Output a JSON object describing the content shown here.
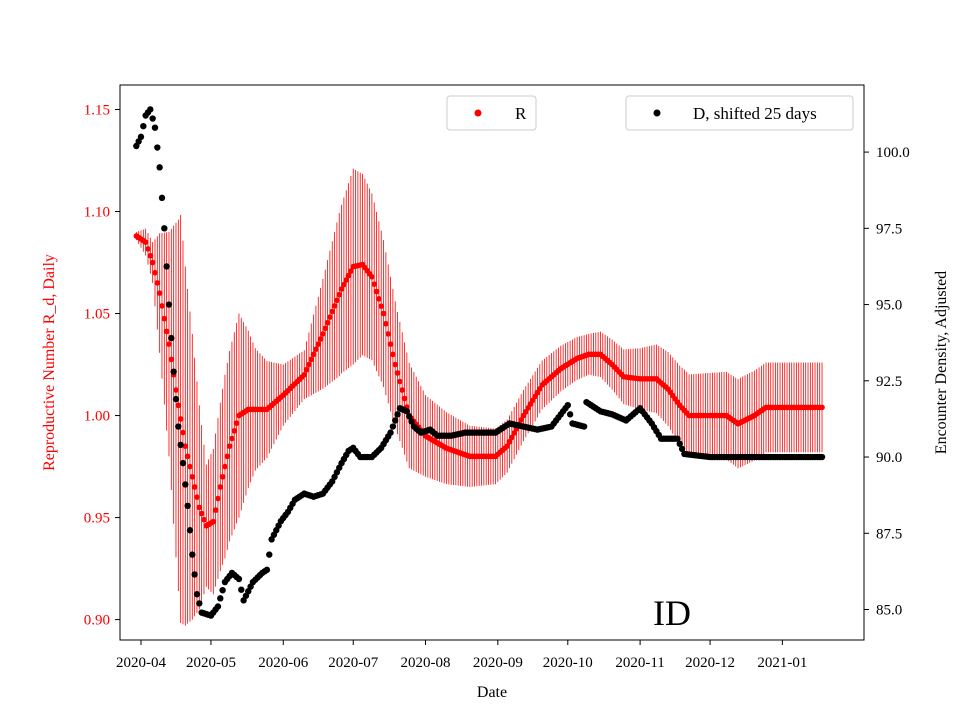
{
  "chart_data": {
    "type": "scatter",
    "xlabel": "Date",
    "ylabel_left": "Reproductive Number R_d, Daily",
    "ylabel_right": "Encounter Density, Adjusted",
    "left_axis_color": "#ff0000",
    "right_axis_color": "#000000",
    "ylim_left": [
      0.89,
      1.162
    ],
    "ylim_right": [
      84.0,
      102.2
    ],
    "x_domain": [
      "2020-03-23",
      "2021-02-05"
    ],
    "x_ticks": [
      "2020-04-01",
      "2020-05-01",
      "2020-06-01",
      "2020-07-01",
      "2020-08-01",
      "2020-09-01",
      "2020-10-01",
      "2020-11-01",
      "2020-12-01",
      "2021-01-01"
    ],
    "x_tick_labels": [
      "2020-04",
      "2020-05",
      "2020-06",
      "2020-07",
      "2020-08",
      "2020-09",
      "2020-10",
      "2020-11",
      "2020-12",
      "2021-01"
    ],
    "y_left_ticks": [
      0.9,
      0.95,
      1.0,
      1.05,
      1.1,
      1.15
    ],
    "y_left_tick_labels": [
      "0.90",
      "0.95",
      "1.00",
      "1.05",
      "1.10",
      "1.15"
    ],
    "y_right_ticks": [
      85.0,
      87.5,
      90.0,
      92.5,
      95.0,
      97.5,
      100.0
    ],
    "y_right_tick_labels": [
      "85.0",
      "87.5",
      "90.0",
      "92.5",
      "95.0",
      "97.5",
      "100.0"
    ],
    "annotation": "ID",
    "series": [
      {
        "name": "R",
        "axis": "left",
        "color": "#ff0000",
        "keypoints": [
          [
            "2020-03-30",
            1.088
          ],
          [
            "2020-04-03",
            1.085
          ],
          [
            "2020-04-06",
            1.075
          ],
          [
            "2020-04-09",
            1.06
          ],
          [
            "2020-04-13",
            1.035
          ],
          [
            "2020-04-17",
            1.005
          ],
          [
            "2020-04-20",
            0.985
          ],
          [
            "2020-04-23",
            0.97
          ],
          [
            "2020-04-26",
            0.955
          ],
          [
            "2020-04-29",
            0.946
          ],
          [
            "2020-05-02",
            0.948
          ],
          [
            "2020-05-05",
            0.965
          ],
          [
            "2020-05-09",
            0.985
          ],
          [
            "2020-05-13",
            1.0
          ],
          [
            "2020-05-17",
            1.003
          ],
          [
            "2020-05-25",
            1.003
          ],
          [
            "2020-06-01",
            1.01
          ],
          [
            "2020-06-10",
            1.02
          ],
          [
            "2020-06-18",
            1.04
          ],
          [
            "2020-06-26",
            1.062
          ],
          [
            "2020-07-01",
            1.073
          ],
          [
            "2020-07-05",
            1.074
          ],
          [
            "2020-07-09",
            1.068
          ],
          [
            "2020-07-14",
            1.05
          ],
          [
            "2020-07-19",
            1.025
          ],
          [
            "2020-07-25",
            1.0
          ],
          [
            "2020-08-01",
            0.99
          ],
          [
            "2020-08-10",
            0.984
          ],
          [
            "2020-08-20",
            0.98
          ],
          [
            "2020-08-31",
            0.98
          ],
          [
            "2020-09-05",
            0.985
          ],
          [
            "2020-09-12",
            1.0
          ],
          [
            "2020-09-20",
            1.015
          ],
          [
            "2020-09-28",
            1.023
          ],
          [
            "2020-10-05",
            1.028
          ],
          [
            "2020-10-10",
            1.03
          ],
          [
            "2020-10-15",
            1.03
          ],
          [
            "2020-10-20",
            1.025
          ],
          [
            "2020-10-25",
            1.019
          ],
          [
            "2020-11-01",
            1.018
          ],
          [
            "2020-11-08",
            1.018
          ],
          [
            "2020-11-13",
            1.013
          ],
          [
            "2020-11-18",
            1.005
          ],
          [
            "2020-11-22",
            1.0
          ],
          [
            "2020-11-30",
            1.0
          ],
          [
            "2020-12-08",
            1.0
          ],
          [
            "2020-12-13",
            0.996
          ],
          [
            "2020-12-20",
            1.0
          ],
          [
            "2020-12-25",
            1.004
          ],
          [
            "2021-01-05",
            1.004
          ],
          [
            "2021-01-18",
            1.004
          ]
        ],
        "error_keypoints": [
          [
            "2020-03-30",
            0.002
          ],
          [
            "2020-04-06",
            0.01
          ],
          [
            "2020-04-13",
            0.055
          ],
          [
            "2020-04-18",
            0.1
          ],
          [
            "2020-04-23",
            0.07
          ],
          [
            "2020-04-29",
            0.03
          ],
          [
            "2020-05-07",
            0.045
          ],
          [
            "2020-05-13",
            0.05
          ],
          [
            "2020-05-20",
            0.03
          ],
          [
            "2020-06-01",
            0.015
          ],
          [
            "2020-06-10",
            0.012
          ],
          [
            "2020-06-25",
            0.04
          ],
          [
            "2020-07-01",
            0.048
          ],
          [
            "2020-07-10",
            0.04
          ],
          [
            "2020-07-20",
            0.03
          ],
          [
            "2020-08-01",
            0.02
          ],
          [
            "2020-08-20",
            0.015
          ],
          [
            "2020-09-05",
            0.013
          ],
          [
            "2020-09-20",
            0.012
          ],
          [
            "2020-10-10",
            0.01
          ],
          [
            "2020-11-01",
            0.015
          ],
          [
            "2020-11-20",
            0.02
          ],
          [
            "2020-12-15",
            0.022
          ],
          [
            "2021-01-18",
            0.022
          ]
        ]
      },
      {
        "name": "D, shifted 25 days",
        "axis": "right",
        "color": "#000000",
        "keypoints": [
          [
            "2020-03-30",
            100.2
          ],
          [
            "2020-04-01",
            100.5
          ],
          [
            "2020-04-03",
            101.2
          ],
          [
            "2020-04-05",
            101.4
          ],
          [
            "2020-04-07",
            100.8
          ],
          [
            "2020-04-09",
            99.5
          ],
          [
            "2020-04-11",
            97.5
          ],
          [
            "2020-04-13",
            95.0
          ],
          [
            "2020-04-15",
            92.8
          ],
          [
            "2020-04-17",
            91.0
          ],
          [
            "2020-04-19",
            89.8
          ],
          [
            "2020-04-21",
            88.4
          ],
          [
            "2020-04-23",
            86.8
          ],
          [
            "2020-04-25",
            85.5
          ],
          [
            "2020-04-27",
            84.9
          ],
          [
            "2020-05-01",
            84.8
          ],
          [
            "2020-05-04",
            85.1
          ],
          [
            "2020-05-07",
            85.9
          ],
          [
            "2020-05-10",
            86.2
          ],
          [
            "2020-05-13",
            86.0
          ],
          [
            "2020-05-15",
            85.3
          ],
          [
            "2020-05-19",
            85.9
          ],
          [
            "2020-05-23",
            86.2
          ],
          [
            "2020-05-25",
            86.3
          ],
          [
            "2020-05-27",
            87.3
          ],
          [
            "2020-05-31",
            87.9
          ],
          [
            "2020-06-03",
            88.2
          ],
          [
            "2020-06-06",
            88.6
          ],
          [
            "2020-06-10",
            88.8
          ],
          [
            "2020-06-14",
            88.7
          ],
          [
            "2020-06-18",
            88.8
          ],
          [
            "2020-06-22",
            89.2
          ],
          [
            "2020-06-26",
            89.8
          ],
          [
            "2020-06-29",
            90.2
          ],
          [
            "2020-07-01",
            90.3
          ],
          [
            "2020-07-04",
            90.0
          ],
          [
            "2020-07-09",
            90.0
          ],
          [
            "2020-07-13",
            90.3
          ],
          [
            "2020-07-17",
            90.8
          ],
          [
            "2020-07-21",
            91.6
          ],
          [
            "2020-07-24",
            91.5
          ],
          [
            "2020-07-27",
            91.0
          ],
          [
            "2020-07-30",
            90.8
          ],
          [
            "2020-08-03",
            90.9
          ],
          [
            "2020-08-06",
            90.7
          ],
          [
            "2020-08-12",
            90.7
          ],
          [
            "2020-08-18",
            90.8
          ],
          [
            "2020-08-31",
            90.8
          ],
          [
            "2020-09-06",
            91.1
          ],
          [
            "2020-09-12",
            91.0
          ],
          [
            "2020-09-18",
            90.9
          ],
          [
            "2020-09-24",
            91.0
          ],
          [
            "2020-09-28",
            91.4
          ],
          [
            "2020-10-01",
            91.7
          ],
          [
            "2020-10-03",
            91.1
          ],
          [
            "2020-10-08",
            91.0
          ],
          [
            "2020-10-09",
            91.8
          ],
          [
            "2020-10-15",
            91.5
          ],
          [
            "2020-10-20",
            91.4
          ],
          [
            "2020-10-26",
            91.2
          ],
          [
            "2020-11-01",
            91.6
          ],
          [
            "2020-11-06",
            91.1
          ],
          [
            "2020-11-10",
            90.6
          ],
          [
            "2020-11-17",
            90.6
          ],
          [
            "2020-11-20",
            90.1
          ],
          [
            "2020-12-01",
            90.0
          ],
          [
            "2021-01-18",
            90.0
          ]
        ]
      }
    ],
    "legend": [
      {
        "label": "R",
        "color": "#ff0000",
        "placement": "top-center"
      },
      {
        "label": "D, shifted 25 days",
        "color": "#000000",
        "placement": "top-right"
      }
    ]
  }
}
